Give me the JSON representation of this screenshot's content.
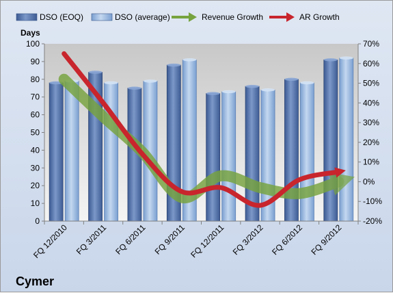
{
  "chart_data": {
    "type": "bar",
    "company": "Cymer",
    "left_axis_label": "Days",
    "categories": [
      "FQ 12/2010",
      "FQ 3/2011",
      "FQ 6/2011",
      "FQ 9/2011",
      "FQ 12/2011",
      "FQ 3/2012",
      "FQ 6/2012",
      "FQ 9/2012"
    ],
    "bar_series": [
      {
        "name": "DSO (EOQ)",
        "color": "#4f6fa8",
        "values": [
          78,
          84,
          75,
          88,
          72,
          76,
          80,
          91
        ]
      },
      {
        "name": "DSO (average)",
        "color": "#8fb2de",
        "values": [
          79,
          78,
          79,
          91,
          73,
          74,
          78,
          92
        ]
      }
    ],
    "line_series": [
      {
        "name": "Revenue Growth",
        "color": "#77a33e",
        "axis": "right",
        "values": [
          52,
          33,
          15,
          -8,
          3,
          -3,
          -6,
          0
        ]
      },
      {
        "name": "AR Growth",
        "color": "#c8252d",
        "axis": "right",
        "values": [
          65,
          40,
          14,
          -5,
          -3,
          -12,
          1,
          5
        ]
      }
    ],
    "ylim_left": [
      0,
      100
    ],
    "yticks_left": [
      "0",
      "10",
      "20",
      "30",
      "40",
      "50",
      "60",
      "70",
      "80",
      "90",
      "100"
    ],
    "ylim_right": [
      -20,
      70
    ],
    "yticks_right": [
      "-20%",
      "-10%",
      "0%",
      "10%",
      "20%",
      "30%",
      "40%",
      "50%",
      "60%",
      "70%"
    ],
    "legend_position": "top",
    "grid": false
  }
}
